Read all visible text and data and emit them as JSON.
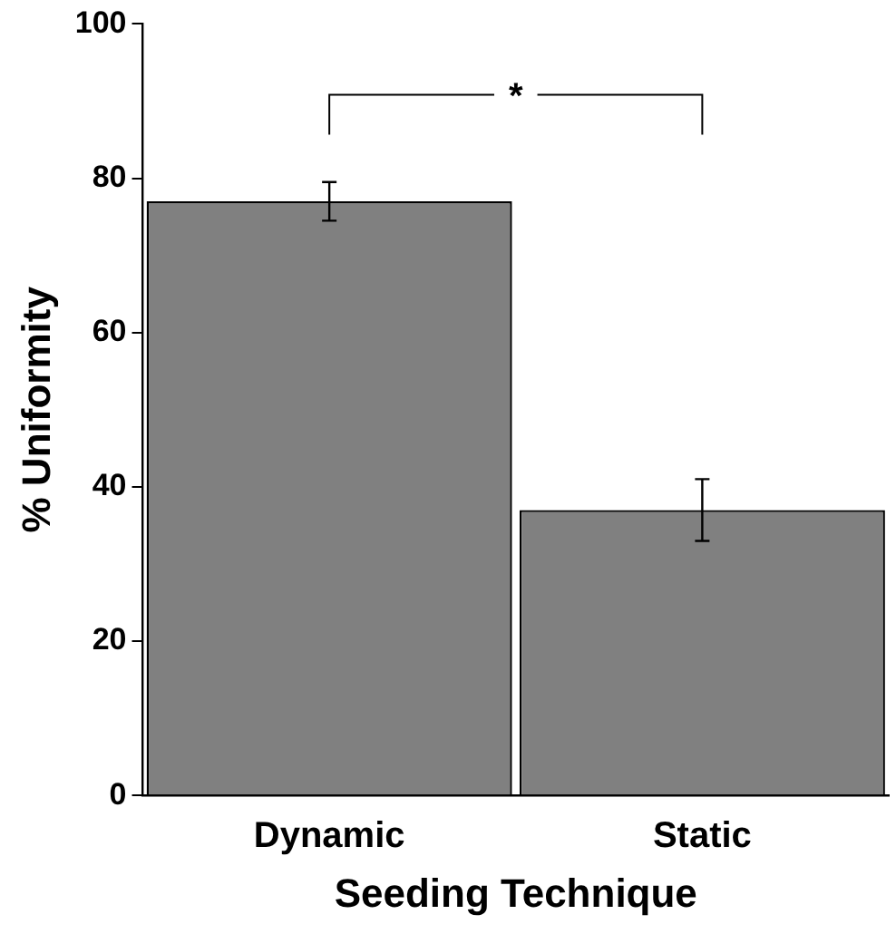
{
  "chart_data": {
    "type": "bar",
    "xlabel": "Seeding Technique",
    "ylabel": "% Uniformity",
    "categories": [
      "Dynamic",
      "Static"
    ],
    "values": [
      77,
      37
    ],
    "errors": [
      2.5,
      4
    ],
    "color": "#808080",
    "ylim": [
      0,
      100
    ],
    "yticks": [
      0,
      20,
      40,
      60,
      80,
      100
    ],
    "grid": false,
    "legend": false,
    "annotations": [
      "*"
    ]
  }
}
